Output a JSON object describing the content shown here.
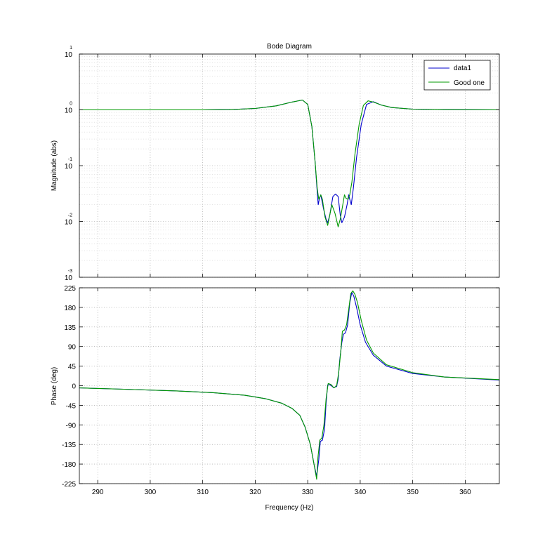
{
  "chart_data": [
    {
      "type": "line",
      "title": "Bode Diagram",
      "xlabel": "",
      "ylabel": "Magnitude (abs)",
      "yscale": "log",
      "xlim": [
        286.5,
        366.5
      ],
      "ylim": [
        0.001,
        10
      ],
      "ytick_bases": [
        "10",
        "10",
        "10",
        "10",
        "10"
      ],
      "ytick_exponents": [
        "1",
        "0",
        "-1",
        "-2",
        "-3"
      ],
      "ytick_values": [
        10,
        1,
        0.1,
        0.01,
        0.001
      ],
      "grid": true,
      "legend": "top-right",
      "series": [
        {
          "name": "data1",
          "color": "#0000cc",
          "x": [
            286.5,
            300,
            310,
            315,
            320,
            324,
            327,
            329,
            330,
            330.8,
            331.4,
            331.8,
            332.0,
            332.2,
            332.5,
            333.0,
            333.5,
            333.8,
            334.2,
            334.8,
            335.3,
            335.8,
            336.2,
            336.5,
            337.0,
            337.5,
            337.8,
            338.0,
            338.3,
            338.7,
            339.3,
            340.2,
            341.2,
            342.5,
            344,
            346,
            350,
            356,
            366.5
          ],
          "y": [
            1.0,
            1.0,
            1.0,
            1.01,
            1.06,
            1.18,
            1.38,
            1.5,
            1.25,
            0.5,
            0.12,
            0.035,
            0.02,
            0.025,
            0.03,
            0.017,
            0.011,
            0.0095,
            0.013,
            0.028,
            0.031,
            0.028,
            0.013,
            0.0095,
            0.012,
            0.02,
            0.03,
            0.025,
            0.02,
            0.04,
            0.14,
            0.55,
            1.25,
            1.4,
            1.22,
            1.1,
            1.03,
            1.01,
            1.0
          ]
        },
        {
          "name": "Good one",
          "color": "#009900",
          "x": [
            286.5,
            300,
            310,
            315,
            320,
            324,
            327,
            329,
            330,
            330.8,
            331.4,
            331.8,
            332.1,
            332.5,
            332.8,
            333.3,
            333.8,
            334.2,
            334.6,
            335.2,
            335.8,
            336.2,
            336.6,
            337.0,
            337.3,
            337.7,
            338.0,
            338.4,
            339.0,
            339.8,
            340.6,
            341.5,
            342.5,
            344,
            346,
            350,
            356,
            366.5
          ],
          "y": [
            1.0,
            1.0,
            1.0,
            1.01,
            1.06,
            1.18,
            1.38,
            1.5,
            1.25,
            0.5,
            0.12,
            0.04,
            0.025,
            0.03,
            0.025,
            0.012,
            0.0085,
            0.013,
            0.02,
            0.014,
            0.008,
            0.011,
            0.018,
            0.03,
            0.026,
            0.025,
            0.03,
            0.05,
            0.16,
            0.55,
            1.2,
            1.45,
            1.38,
            1.22,
            1.1,
            1.03,
            1.01,
            1.0
          ]
        }
      ]
    },
    {
      "type": "line",
      "title": "",
      "xlabel": "Frequency  (Hz)",
      "ylabel": "Phase (deg)",
      "xlim": [
        286.5,
        366.5
      ],
      "ylim": [
        -225,
        225
      ],
      "xticks": [
        290,
        300,
        310,
        320,
        330,
        340,
        350,
        360
      ],
      "yticks": [
        225,
        180,
        135,
        90,
        45,
        0,
        -45,
        -90,
        -135,
        -180,
        -225
      ],
      "grid": true,
      "series": [
        {
          "name": "data1",
          "color": "#0000cc",
          "x": [
            286.5,
            295,
            305,
            312,
            318,
            322,
            325,
            327,
            328.5,
            329.5,
            330.5,
            331.2,
            331.7,
            332.1,
            332.4,
            332.8,
            333.2,
            333.5,
            333.8,
            334.3,
            334.9,
            335.5,
            335.8,
            336.1,
            336.5,
            336.8,
            337.2,
            337.6,
            338.0,
            338.4,
            338.8,
            339.3,
            340,
            341,
            342.5,
            345,
            350,
            356,
            366.5
          ],
          "y": [
            -5,
            -8,
            -12,
            -16,
            -22,
            -30,
            -40,
            -52,
            -68,
            -95,
            -135,
            -180,
            -208,
            -170,
            -128,
            -125,
            -100,
            -40,
            2,
            2,
            -4,
            -2,
            15,
            60,
            100,
            118,
            122,
            140,
            190,
            215,
            205,
            180,
            140,
            100,
            70,
            45,
            28,
            20,
            13
          ]
        },
        {
          "name": "Good one",
          "color": "#009900",
          "x": [
            286.5,
            295,
            305,
            312,
            318,
            322,
            325,
            327,
            328.5,
            329.5,
            330.5,
            331.2,
            331.7,
            331.95,
            332.3,
            332.7,
            333.1,
            333.5,
            333.9,
            334.4,
            335.0,
            335.5,
            335.9,
            336.3,
            336.6,
            337.0,
            337.4,
            337.8,
            338.2,
            338.6,
            339.0,
            339.5,
            340.2,
            341.2,
            342.5,
            345,
            350,
            356,
            366.5
          ],
          "y": [
            -5,
            -8,
            -12,
            -16,
            -22,
            -30,
            -40,
            -52,
            -68,
            -95,
            -135,
            -180,
            -215,
            -165,
            -125,
            -120,
            -90,
            -30,
            5,
            3,
            -5,
            0,
            30,
            80,
            125,
            128,
            140,
            175,
            212,
            218,
            210,
            190,
            150,
            105,
            75,
            48,
            30,
            20,
            14
          ]
        }
      ]
    }
  ]
}
